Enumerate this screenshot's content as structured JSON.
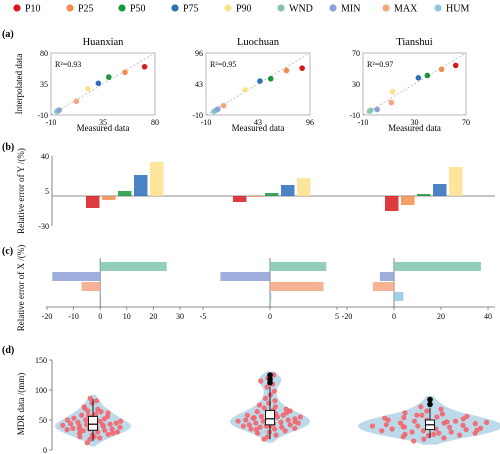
{
  "legend": [
    {
      "name": "P10",
      "color": "#d7191c"
    },
    {
      "name": "P25",
      "color": "#f28e4b"
    },
    {
      "name": "P50",
      "color": "#1a9641"
    },
    {
      "name": "P75",
      "color": "#2c6fbb"
    },
    {
      "name": "P90",
      "color": "#fee08b"
    },
    {
      "name": "WND",
      "color": "#7fc7af"
    },
    {
      "name": "MIN",
      "color": "#8c9fd6"
    },
    {
      "name": "MAX",
      "color": "#f4a582"
    },
    {
      "name": "HUM",
      "color": "#92c5de"
    }
  ],
  "panel_labels": {
    "a": "(a)",
    "b": "(b)",
    "c": "(c)",
    "d": "(d)"
  },
  "chart_data": [
    {
      "id": "a",
      "type": "scatter",
      "xlabel": "Measured data",
      "ylabel": "Interpolated data",
      "subplots": [
        {
          "title": "Huanxian",
          "r2": "R²=0.93",
          "range": [
            -10,
            80
          ],
          "ticks": [
            "-10",
            "35",
            "80"
          ],
          "points": [
            {
              "name": "HUM",
              "x": -5,
              "y": -5
            },
            {
              "name": "WND",
              "x": -4,
              "y": -4
            },
            {
              "name": "MIN",
              "x": -3,
              "y": -3
            },
            {
              "name": "MAX",
              "x": 12,
              "y": 10
            },
            {
              "name": "P90",
              "x": 22,
              "y": 28
            },
            {
              "name": "P75",
              "x": 31,
              "y": 36
            },
            {
              "name": "P50",
              "x": 40,
              "y": 45
            },
            {
              "name": "P25",
              "x": 54,
              "y": 52
            },
            {
              "name": "P10",
              "x": 71,
              "y": 60
            }
          ]
        },
        {
          "title": "Luochuan",
          "r2": "R²=0.95",
          "range": [
            -10,
            96
          ],
          "ticks": [
            "-10",
            "43",
            "96"
          ],
          "points": [
            {
              "name": "HUM",
              "x": -2,
              "y": -4
            },
            {
              "name": "WND",
              "x": 0,
              "y": -2
            },
            {
              "name": "MIN",
              "x": 2,
              "y": 0
            },
            {
              "name": "MAX",
              "x": 8,
              "y": 6
            },
            {
              "name": "P90",
              "x": 30,
              "y": 33
            },
            {
              "name": "P75",
              "x": 45,
              "y": 48
            },
            {
              "name": "P50",
              "x": 56,
              "y": 52
            },
            {
              "name": "P25",
              "x": 72,
              "y": 66
            },
            {
              "name": "P10",
              "x": 88,
              "y": 70
            }
          ]
        },
        {
          "title": "Tianshui",
          "r2": "R²=0.97",
          "range": [
            -10,
            70
          ],
          "ticks": [
            "-10",
            "30",
            "70"
          ],
          "points": [
            {
              "name": "HUM",
              "x": -5,
              "y": -5
            },
            {
              "name": "WND",
              "x": -4,
              "y": -4
            },
            {
              "name": "MIN",
              "x": 1,
              "y": -3
            },
            {
              "name": "MAX",
              "x": 12,
              "y": 6
            },
            {
              "name": "P90",
              "x": 13,
              "y": 20
            },
            {
              "name": "P75",
              "x": 33,
              "y": 38
            },
            {
              "name": "P50",
              "x": 40,
              "y": 41
            },
            {
              "name": "P25",
              "x": 51,
              "y": 49
            },
            {
              "name": "P10",
              "x": 62,
              "y": 54
            }
          ]
        }
      ]
    },
    {
      "id": "b",
      "type": "bar",
      "ylabel": "Relative error of Y /(%)",
      "yticks": [
        "40",
        "5",
        "-30"
      ],
      "ylim": [
        -30,
        40
      ],
      "categories": [
        "P10",
        "P25",
        "P50",
        "P75",
        "P90"
      ],
      "series": [
        {
          "site": "Huanxian",
          "values": [
            -12,
            -4,
            5,
            21,
            34
          ]
        },
        {
          "site": "Luochuan",
          "values": [
            -6,
            -1,
            3,
            11,
            18
          ]
        },
        {
          "site": "Tianshui",
          "values": [
            -15,
            -9,
            2,
            12,
            29
          ]
        }
      ]
    },
    {
      "id": "c",
      "type": "bar-horizontal",
      "ylabel": "Relative error of X /(%)",
      "categories": [
        "WND",
        "MIN",
        "MAX",
        "HUM"
      ],
      "subplots": [
        {
          "site": "Huanxian",
          "xlim": [
            -20,
            30
          ],
          "ticks": [
            "-20",
            "-10",
            "0",
            "10",
            "20",
            "30"
          ],
          "values": [
            25,
            -18,
            -7,
            0
          ]
        },
        {
          "site": "Luochuan",
          "xlim": [
            -5,
            5
          ],
          "ticks": [
            "-5",
            "0",
            "5"
          ],
          "values": [
            4.2,
            -3.7,
            4.0,
            0.1
          ]
        },
        {
          "site": "Tianshui",
          "xlim": [
            -20,
            40
          ],
          "ticks": [
            "-20",
            "0",
            "20",
            "40"
          ],
          "values": [
            37,
            -6,
            -9,
            4
          ]
        }
      ]
    },
    {
      "id": "d",
      "type": "violin",
      "ylabel": "MDR data /(mm)",
      "yticks": [
        "0",
        "50",
        "100",
        "150"
      ],
      "ylim": [
        0,
        150
      ],
      "groups": [
        {
          "site": "Huanxian",
          "q1": 33,
          "median": 43,
          "q3": 56,
          "whisker_low": 15,
          "whisker_high": 85,
          "outliers": [],
          "points": [
            12,
            18,
            20,
            22,
            25,
            26,
            28,
            30,
            30,
            32,
            33,
            34,
            35,
            35,
            36,
            38,
            38,
            40,
            40,
            41,
            42,
            43,
            44,
            45,
            45,
            46,
            48,
            48,
            50,
            52,
            53,
            55,
            56,
            58,
            60,
            62,
            65,
            68,
            72,
            78,
            82,
            86,
            22,
            28,
            35,
            42,
            50,
            57,
            64,
            70
          ]
        },
        {
          "site": "Luochuan",
          "q1": 42,
          "median": 52,
          "q3": 66,
          "whisker_low": 18,
          "whisker_high": 105,
          "outliers": [
            112,
            118,
            125
          ],
          "points": [
            18,
            22,
            25,
            28,
            30,
            32,
            34,
            35,
            36,
            38,
            38,
            40,
            40,
            42,
            42,
            44,
            45,
            45,
            46,
            48,
            48,
            50,
            50,
            52,
            52,
            54,
            55,
            55,
            56,
            58,
            58,
            60,
            62,
            64,
            66,
            68,
            70,
            72,
            75,
            78,
            82,
            86,
            92,
            98,
            105,
            110,
            115,
            120,
            125,
            35,
            40,
            47,
            53,
            60,
            65
          ]
        },
        {
          "site": "Tianshui",
          "q1": 34,
          "median": 42,
          "q3": 50,
          "whisker_low": 20,
          "whisker_high": 70,
          "outliers": [
            76,
            84
          ],
          "points": [
            15,
            18,
            20,
            22,
            24,
            25,
            26,
            28,
            28,
            30,
            30,
            32,
            32,
            34,
            35,
            35,
            36,
            38,
            38,
            40,
            40,
            41,
            42,
            43,
            44,
            45,
            45,
            46,
            48,
            48,
            50,
            50,
            52,
            54,
            55,
            56,
            58,
            60,
            62,
            65,
            68,
            72,
            26,
            33,
            39,
            47,
            53,
            58
          ]
        }
      ]
    }
  ]
}
